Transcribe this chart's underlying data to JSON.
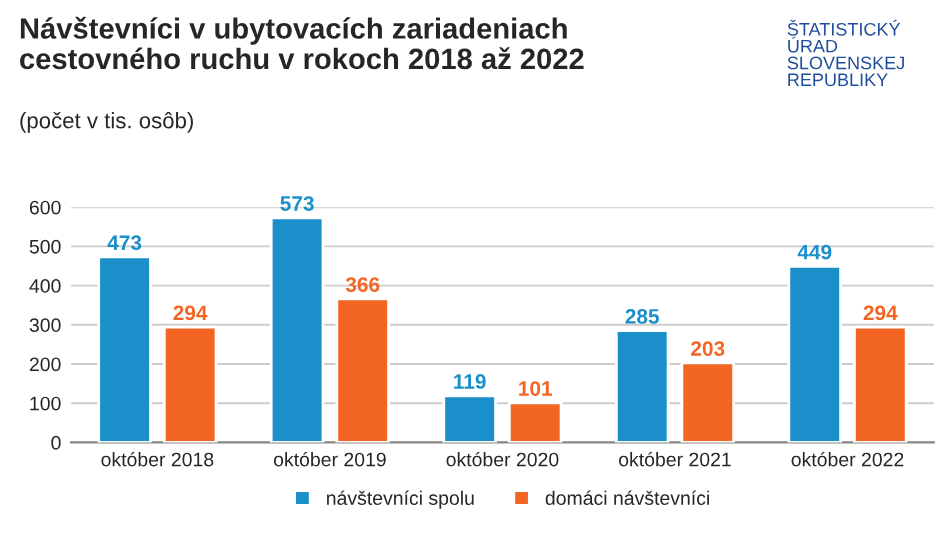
{
  "chart_data": {
    "type": "bar",
    "title": "Návštevníci v ubytovacích zariadeniach\ncestovného ruchu v rokoch 2018 až 2022",
    "subtitle": "(počet v tis. osôb)",
    "annotations": [
      "ŠTATISTICKÝ\nÚRAD\nSLOVENSKEJ\nREPUBLIKY"
    ],
    "categories": [
      "október 2018",
      "október 2019",
      "október 2020",
      "október 2021",
      "október 2022"
    ],
    "series": [
      {
        "name": "návštevníci spolu",
        "color": "#1a8fc9",
        "values": [
          473,
          573,
          119,
          285,
          449
        ]
      },
      {
        "name": "domáci návštevníci",
        "color": "#f26522",
        "values": [
          294,
          366,
          101,
          203,
          294
        ]
      }
    ],
    "ylim": [
      0,
      600
    ],
    "yticks": [
      0,
      100,
      200,
      300,
      400,
      500,
      600
    ],
    "grid": "y",
    "legend": "bottom",
    "data_labels": true
  }
}
